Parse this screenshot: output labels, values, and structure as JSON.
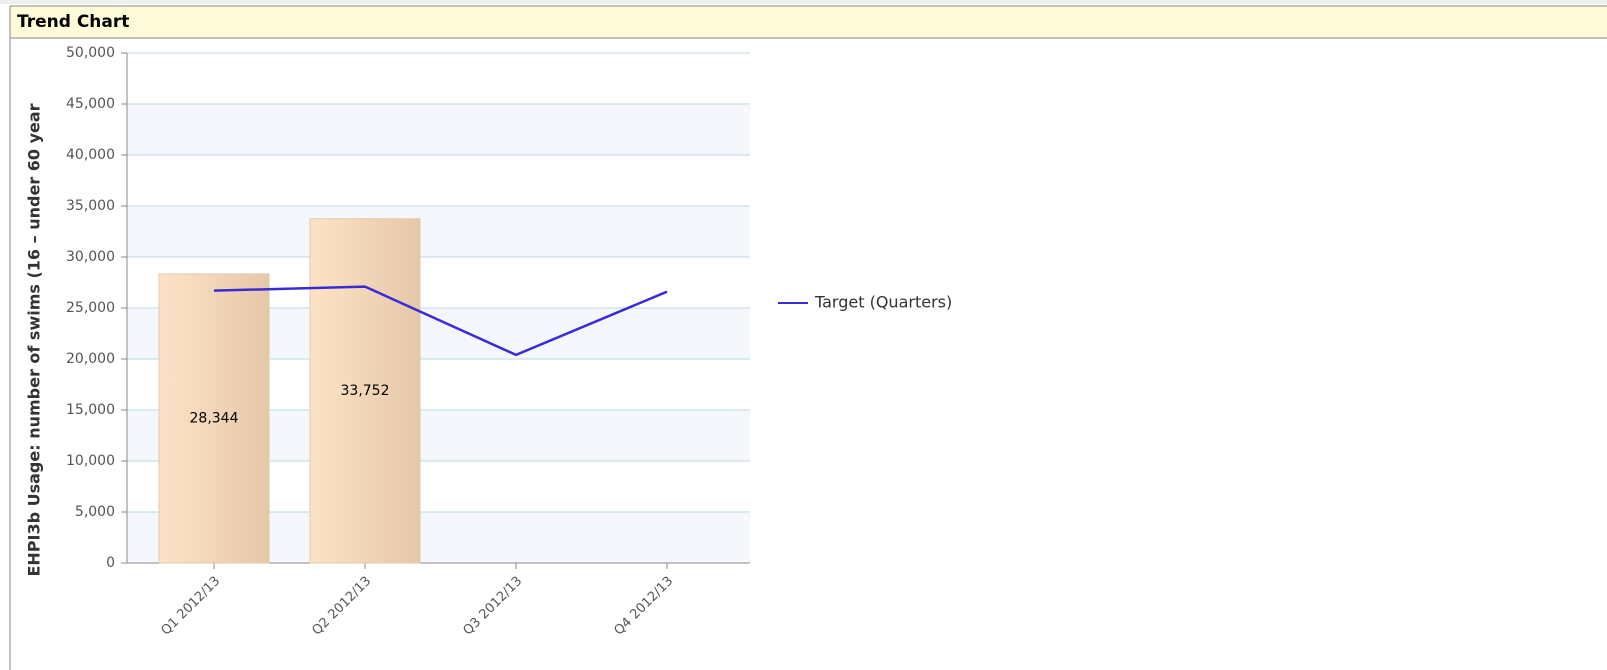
{
  "chart_data": {
    "type": "bar",
    "title": "Trend Chart",
    "y_label": "EHPI3b Usage: number of swims (16 – under 60 year",
    "categories": [
      "Q1 2012/13",
      "Q2 2012/13",
      "Q3 2012/13",
      "Q4 2012/13"
    ],
    "series": [
      {
        "type": "bar",
        "color": "#f6dcbd",
        "values": [
          28344,
          33752,
          null,
          null
        ],
        "value_labels": [
          "28,344",
          "33,752",
          null,
          null
        ]
      },
      {
        "type": "line",
        "name": "Target (Quarters)",
        "color": "#3a2bd8",
        "values": [
          26700,
          27100,
          20400,
          26600
        ]
      }
    ],
    "ylim": [
      0,
      50000
    ],
    "yticks": [
      {
        "value": 0,
        "label": "0"
      },
      {
        "value": 5000,
        "label": "5,000"
      },
      {
        "value": 10000,
        "label": "10,000"
      },
      {
        "value": 15000,
        "label": "15,000"
      },
      {
        "value": 20000,
        "label": "20,000"
      },
      {
        "value": 25000,
        "label": "25,000"
      },
      {
        "value": 30000,
        "label": "30,000"
      },
      {
        "value": 35000,
        "label": "35,000"
      },
      {
        "value": 40000,
        "label": "40,000"
      },
      {
        "value": 45000,
        "label": "45,000"
      },
      {
        "value": 50000,
        "label": "50,000"
      }
    ],
    "grid": true,
    "legend": "right"
  }
}
